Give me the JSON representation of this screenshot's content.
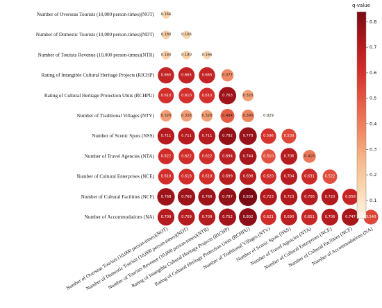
{
  "chart_data": {
    "type": "heatmap",
    "shape": "lower-triangular circle correlation matrix",
    "variables": [
      "Number of Overseas Tourists (10,000 person-times)(NOT)",
      "Number of Domestic Tourists (10,000 person-times)(NDT)",
      "Number of Tourists Revenue (10,000 person-times)(NTR)",
      "Rating of Intangible Cultural Heritage Projects (RICHP)",
      "Rating of Cultural Heritage Protection Units (RCHPU)",
      "Number of Traditional Villages (NTV)",
      "Number of Scenic Spots (NSS)",
      "Number of Travel Agencies (NTA)",
      "Number of Cultural Enterprises (NCE)",
      "Number of Cultural Facilities (NCF)",
      "Number of Accommodations (NA)"
    ],
    "values": [
      [
        "0.166"
      ],
      [
        "0.180",
        "0.166"
      ],
      [
        "0.180",
        "0.180",
        "0.166"
      ],
      [
        "0.665",
        "0.665",
        "0.665",
        "0.377"
      ],
      [
        "0.610",
        "0.610",
        "0.610",
        "0.763",
        "0.320"
      ],
      [
        "0.326",
        "0.326",
        "0.326",
        "0.484",
        "0.390",
        "0.029"
      ],
      [
        "0.711",
        "0.711",
        "0.711",
        "0.782",
        "0.778",
        "0.596",
        "0.539"
      ],
      [
        "0.622",
        "0.622",
        "0.622",
        "0.694",
        "0.744",
        "0.510",
        "0.706",
        "0.416"
      ],
      [
        "0.618",
        "0.618",
        "0.618",
        "0.699",
        "0.698",
        "0.620",
        "0.704",
        "0.631",
        "0.522"
      ],
      [
        "0.768",
        "0.768",
        "0.768",
        "0.787",
        "0.839",
        "0.723",
        "0.723",
        "0.706",
        "0.720",
        "0.658"
      ],
      [
        "0.709",
        "0.709",
        "0.709",
        "0.752",
        "0.802",
        "0.621",
        "0.690",
        "0.651",
        "0.706",
        "0.747",
        "0.540"
      ]
    ],
    "colorbar": {
      "title": "q-value",
      "ticks": [
        "0.1",
        "0.2",
        "0.3",
        "0.4",
        "0.5",
        "0.6",
        "0.7",
        "0.8"
      ],
      "range": [
        0.029,
        0.839
      ],
      "colors": [
        "#fdf5ea",
        "#fbd9b0",
        "#f7b98a",
        "#f08a64",
        "#e45a45",
        "#d42f2c",
        "#b1191d",
        "#7a0a14"
      ]
    },
    "grid": false,
    "legend": "right"
  }
}
